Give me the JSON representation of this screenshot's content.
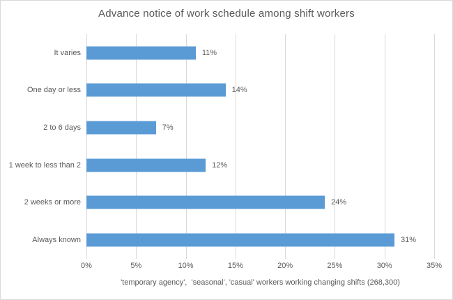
{
  "chart_data": {
    "type": "bar",
    "orientation": "horizontal",
    "title": "Advance notice of work schedule among shift workers",
    "categories": [
      "It varies",
      "One day or less",
      "2 to 6 days",
      "1 week to less than 2",
      "2 weeks or more",
      "Always known"
    ],
    "values": [
      11,
      14,
      7,
      12,
      24,
      31
    ],
    "data_labels": [
      "11%",
      "14%",
      "7%",
      "12%",
      "24%",
      "31%"
    ],
    "x_ticks_percent": [
      0,
      5,
      10,
      15,
      20,
      25,
      30,
      35
    ],
    "x_tick_labels": [
      "0%",
      "5%",
      "10%",
      "15%",
      "20%",
      "25%",
      "30%",
      "35%"
    ],
    "xlim": [
      0,
      35
    ],
    "xlabel": "'temporary agency',  'seasonal', 'casual' workers working changing shifts (268,300)",
    "grid": true,
    "legend": false,
    "colors": {
      "bar": "#5b9bd5",
      "gridline": "#d9d9d9",
      "text": "#595959",
      "chart_border": "#d9d9d9",
      "background": "#ffffff"
    }
  }
}
